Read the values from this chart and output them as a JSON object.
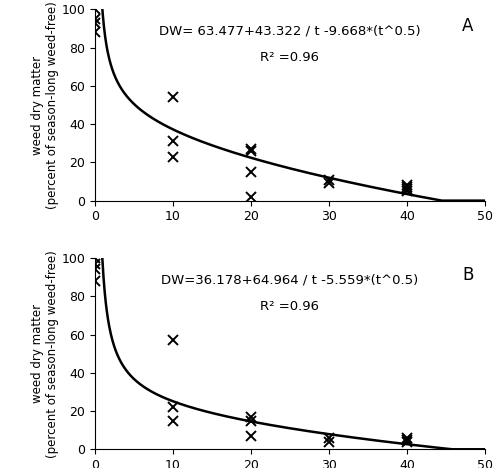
{
  "panel_A": {
    "label": "A",
    "equation": "DW= 63.477+43.322 / t -9.668*(t^0.5)",
    "r2": "R² =0.96",
    "a": 63.477,
    "b": 43.322,
    "c": 9.668,
    "scatter_x": [
      0,
      0,
      0,
      0,
      10,
      10,
      10,
      20,
      20,
      20,
      20,
      30,
      30,
      40,
      40,
      40,
      40
    ],
    "scatter_y": [
      100,
      95,
      93,
      88,
      54,
      31,
      23,
      27,
      26,
      15,
      2,
      11,
      9,
      8,
      7,
      6,
      5
    ]
  },
  "panel_B": {
    "label": "B",
    "equation": "DW=36.178+64.964 / t -5.559*(t^0.5)",
    "r2": "R² =0.96",
    "a": 36.178,
    "b": 64.964,
    "c": 5.559,
    "scatter_x": [
      0,
      0,
      0,
      0,
      10,
      10,
      10,
      20,
      20,
      20,
      30,
      30,
      40,
      40,
      40
    ],
    "scatter_y": [
      100,
      97,
      94,
      88,
      57,
      22,
      15,
      17,
      15,
      7,
      6,
      4,
      6,
      5,
      4
    ]
  },
  "ylabel": "weed dry matter\n(percent of season-long weed-free)",
  "xlim": [
    0,
    50
  ],
  "ylim": [
    0,
    100
  ],
  "xticks": [
    0,
    10,
    20,
    30,
    40,
    50
  ],
  "yticks": [
    0,
    20,
    40,
    60,
    80,
    100
  ],
  "line_color": "black",
  "marker_color": "black",
  "background": "white",
  "fontsize_annotation": 9.5,
  "fontsize_label": 8.5,
  "fontsize_tick": 9,
  "fontsize_panel_label": 12
}
